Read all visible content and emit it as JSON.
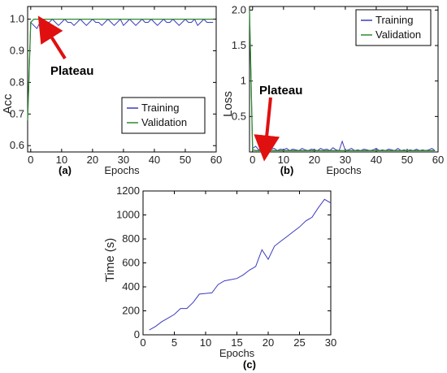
{
  "chart_data": [
    {
      "panel": "(a)",
      "type": "line",
      "xlabel": "Epochs",
      "ylabel": "Acc",
      "xlim": [
        -1,
        60
      ],
      "ylim": [
        0.58,
        1.04
      ],
      "xticks": [
        0,
        10,
        20,
        30,
        40,
        50,
        60
      ],
      "yticks": [
        0.6,
        0.7,
        0.8,
        0.9,
        1.0
      ],
      "ytick_labels": [
        "0.6",
        "0.7",
        "0.8",
        "0.9",
        "1.0"
      ],
      "legend": "bottom-right",
      "annotation": "Plateau",
      "annotation_point": [
        3,
        0.995
      ],
      "series": [
        {
          "name": "Training",
          "color": "#3b3bbf",
          "x": [
            -1,
            0,
            1,
            2,
            3,
            4,
            5,
            6,
            7,
            8,
            9,
            10,
            11,
            12,
            13,
            14,
            15,
            16,
            17,
            18,
            19,
            20,
            21,
            22,
            23,
            24,
            25,
            26,
            27,
            28,
            29,
            30,
            31,
            32,
            33,
            34,
            35,
            36,
            37,
            38,
            39,
            40,
            41,
            42,
            43,
            44,
            45,
            46,
            47,
            48,
            49,
            50,
            51,
            52,
            53,
            54,
            55,
            56,
            57,
            58,
            59
          ],
          "values": [
            0.68,
            0.99,
            0.98,
            0.97,
            0.99,
            0.98,
            0.99,
            0.99,
            1.0,
            0.99,
            0.98,
            0.99,
            1.0,
            0.99,
            0.99,
            0.98,
            0.99,
            1.0,
            0.99,
            0.98,
            0.99,
            1.0,
            0.99,
            0.99,
            0.98,
            0.99,
            1.0,
            0.99,
            0.98,
            0.99,
            1.0,
            0.98,
            0.99,
            1.0,
            0.99,
            0.98,
            0.99,
            1.0,
            0.99,
            0.99,
            1.0,
            0.99,
            0.98,
            0.99,
            1.0,
            0.99,
            0.99,
            1.0,
            0.99,
            0.98,
            0.99,
            1.0,
            0.99,
            0.99,
            1.0,
            0.98,
            0.99,
            1.0,
            0.99,
            0.99,
            0.99
          ]
        },
        {
          "name": "Validation",
          "color": "#2e8b2e",
          "x": [
            -1,
            0,
            1,
            2,
            3,
            59
          ],
          "values": [
            0.68,
            0.99,
            1.0,
            1.0,
            1.0,
            1.0
          ]
        }
      ]
    },
    {
      "panel": "(b)",
      "type": "line",
      "xlabel": "Epochs",
      "ylabel": "Loss",
      "xlim": [
        -1,
        60
      ],
      "ylim": [
        0,
        2.05
      ],
      "xticks": [
        0,
        10,
        20,
        30,
        40,
        50,
        60
      ],
      "yticks": [
        0.5,
        1.0,
        1.5,
        2.0
      ],
      "ytick_labels": [
        "0.5",
        "1",
        "1.5",
        "2.0"
      ],
      "legend": "top-right",
      "annotation": "Plateau",
      "annotation_point": [
        3,
        0.05
      ],
      "series": [
        {
          "name": "Training",
          "color": "#3b3bbf",
          "x": [
            -1,
            0,
            1,
            2,
            3,
            4,
            5,
            6,
            7,
            8,
            9,
            10,
            11,
            12,
            13,
            14,
            15,
            16,
            17,
            18,
            19,
            20,
            21,
            22,
            23,
            24,
            25,
            26,
            27,
            28,
            29,
            30,
            31,
            32,
            33,
            34,
            35,
            36,
            37,
            38,
            39,
            40,
            41,
            42,
            43,
            44,
            45,
            46,
            47,
            48,
            49,
            50,
            51,
            52,
            53,
            54,
            55,
            56,
            57,
            58,
            59
          ],
          "values": [
            2.0,
            0.05,
            0.08,
            0.03,
            0.06,
            0.02,
            0.1,
            0.04,
            0.05,
            0.02,
            0.04,
            0.03,
            0.05,
            0.02,
            0.04,
            0.03,
            0.02,
            0.05,
            0.03,
            0.02,
            0.04,
            0.03,
            0.02,
            0.05,
            0.03,
            0.04,
            0.02,
            0.06,
            0.03,
            0.02,
            0.15,
            0.02,
            0.03,
            0.05,
            0.02,
            0.03,
            0.02,
            0.04,
            0.03,
            0.02,
            0.03,
            0.05,
            0.02,
            0.03,
            0.02,
            0.04,
            0.03,
            0.02,
            0.05,
            0.02,
            0.03,
            0.02,
            0.03,
            0.02,
            0.04,
            0.02,
            0.03,
            0.02,
            0.03,
            0.05,
            0.02
          ]
        },
        {
          "name": "Validation",
          "color": "#2e8b2e",
          "x": [
            -1,
            0,
            1,
            2,
            59
          ],
          "values": [
            2.0,
            0.03,
            0.02,
            0.02,
            0.02
          ]
        }
      ]
    },
    {
      "panel": "(c)",
      "type": "line",
      "xlabel": "Epochs",
      "ylabel": "Time (s)",
      "xlim": [
        0,
        30
      ],
      "ylim": [
        0,
        1200
      ],
      "xticks": [
        0,
        5,
        10,
        15,
        20,
        25,
        30
      ],
      "yticks": [
        0,
        200,
        400,
        600,
        800,
        1000,
        1200
      ],
      "ytick_labels": [
        "0",
        "200",
        "400",
        "600",
        "800",
        "1000",
        "1200"
      ],
      "series": [
        {
          "color": "#3b3bbf",
          "x": [
            1,
            2,
            3,
            4,
            5,
            6,
            7,
            8,
            9,
            10,
            11,
            12,
            13,
            14,
            15,
            16,
            17,
            18,
            19,
            20,
            21,
            22,
            23,
            24,
            25,
            26,
            27,
            28,
            29,
            30
          ],
          "values": [
            40,
            70,
            110,
            140,
            170,
            220,
            220,
            270,
            340,
            345,
            350,
            420,
            450,
            460,
            470,
            500,
            540,
            570,
            710,
            630,
            740,
            780,
            820,
            860,
            900,
            950,
            980,
            1060,
            1130,
            1100
          ]
        }
      ]
    }
  ]
}
